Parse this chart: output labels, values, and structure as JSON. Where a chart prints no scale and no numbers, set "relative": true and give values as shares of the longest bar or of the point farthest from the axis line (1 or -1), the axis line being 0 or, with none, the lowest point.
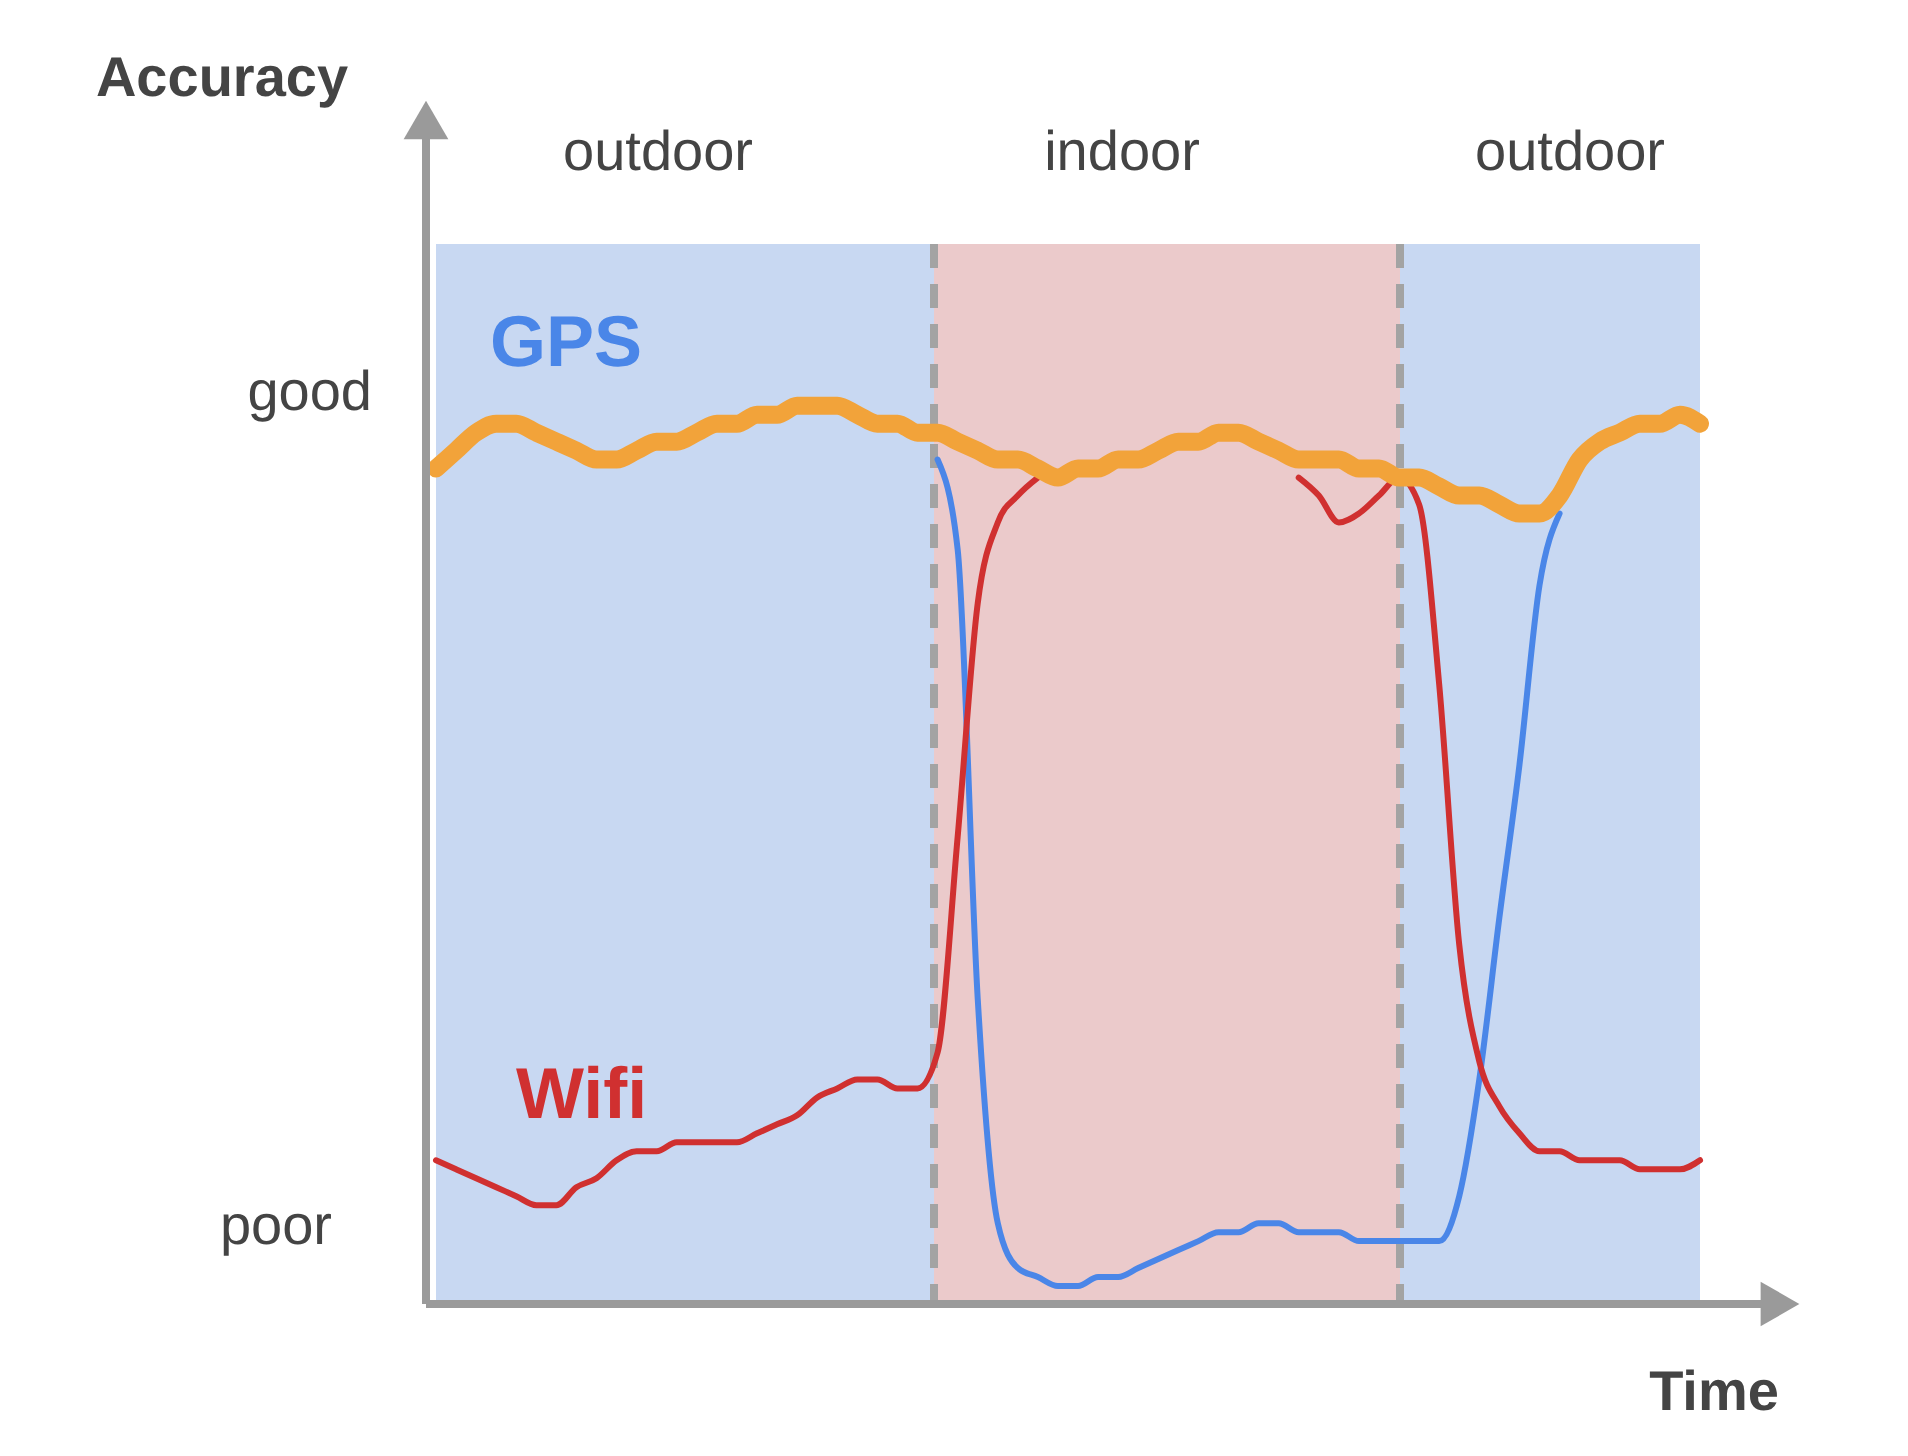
{
  "chart_data": {
    "type": "line",
    "relative": true,
    "xlabel": "Time",
    "categories": [
      null,
      null,
      null,
      null,
      null,
      null,
      null,
      null,
      null,
      null,
      null,
      null,
      null,
      null,
      null,
      null,
      null,
      null,
      null,
      null,
      null,
      null,
      null,
      null,
      null,
      null,
      null,
      null,
      null,
      null,
      null,
      null,
      null,
      null,
      null,
      null,
      null,
      null,
      null,
      null,
      null,
      null,
      null,
      null,
      null,
      null,
      null,
      null,
      null,
      null,
      null,
      null,
      null,
      null,
      null,
      null,
      null,
      null,
      null,
      null,
      null,
      null,
      null,
      null
    ],
    "series": [
      {
        "name": "GPS",
        "color": "#4a86e8",
        "values": [
          null,
          null,
          null,
          null,
          null,
          null,
          null,
          null,
          null,
          null,
          null,
          null,
          null,
          null,
          null,
          null,
          null,
          null,
          null,
          null,
          null,
          null,
          null,
          null,
          null,
          0.94,
          0.84,
          0.34,
          0.09,
          0.04,
          0.03,
          0.02,
          0.02,
          0.03,
          0.03,
          0.04,
          0.05,
          0.06,
          0.07,
          0.08,
          0.08,
          0.09,
          0.09,
          0.08,
          0.08,
          0.08,
          0.07,
          0.07,
          0.07,
          0.07,
          0.07,
          0.12,
          0.25,
          0.43,
          0.6,
          0.8,
          0.88,
          null,
          null,
          null,
          null,
          null,
          null,
          null
        ]
      },
      {
        "name": "Wifi",
        "color": "#d03030",
        "values": [
          0.16,
          0.15,
          0.14,
          0.13,
          0.12,
          0.11,
          0.11,
          0.13,
          0.14,
          0.16,
          0.17,
          0.17,
          0.18,
          0.18,
          0.18,
          0.18,
          0.19,
          0.2,
          0.21,
          0.23,
          0.24,
          0.25,
          0.25,
          0.24,
          0.24,
          0.28,
          0.52,
          0.78,
          0.87,
          0.9,
          0.92,
          null,
          null,
          null,
          null,
          null,
          null,
          null,
          null,
          null,
          null,
          null,
          null,
          0.92,
          0.9,
          0.87,
          0.88,
          0.9,
          0.92,
          0.89,
          0.69,
          0.4,
          0.27,
          0.22,
          0.19,
          0.17,
          0.17,
          0.16,
          0.16,
          0.16,
          0.15,
          0.15,
          0.15,
          0.16
        ]
      },
      {
        "color": "#f2a33a",
        "values": [
          0.93,
          0.95,
          0.97,
          0.98,
          0.98,
          0.97,
          0.96,
          0.95,
          0.94,
          0.94,
          0.95,
          0.96,
          0.96,
          0.97,
          0.98,
          0.98,
          0.99,
          0.99,
          1.0,
          1.0,
          1.0,
          0.99,
          0.98,
          0.98,
          0.97,
          0.97,
          0.96,
          0.95,
          0.94,
          0.94,
          0.93,
          0.92,
          0.93,
          0.93,
          0.94,
          0.94,
          0.95,
          0.96,
          0.96,
          0.97,
          0.97,
          0.96,
          0.95,
          0.94,
          0.94,
          0.94,
          0.93,
          0.93,
          0.92,
          0.92,
          0.91,
          0.9,
          0.9,
          0.89,
          0.88,
          0.88,
          0.9,
          0.94,
          0.96,
          0.97,
          0.98,
          0.98,
          0.99,
          0.98
        ]
      }
    ],
    "annotations": [
      "Accuracy",
      "good",
      "poor",
      "outdoor",
      "indoor",
      "outdoor"
    ],
    "line_style": "solid"
  }
}
